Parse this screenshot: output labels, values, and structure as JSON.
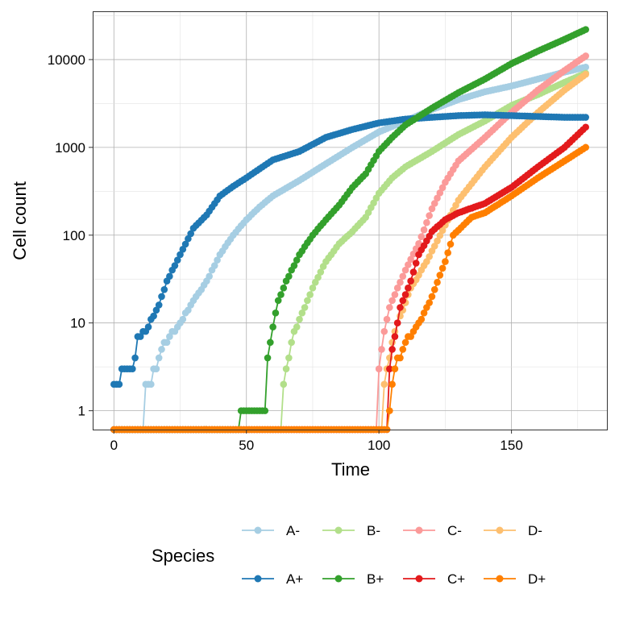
{
  "chart_data": {
    "type": "line",
    "xlabel": "Time",
    "ylabel": "Cell count",
    "xlim": [
      -8,
      186
    ],
    "ylim": [
      0.61,
      35500
    ],
    "yscale": "log10",
    "grid": true,
    "xticks": [
      0,
      50,
      100,
      150
    ],
    "xtick_labels": [
      "0",
      "50",
      "100",
      "150"
    ],
    "yticks": [
      1,
      10,
      100,
      1000,
      10000
    ],
    "ytick_labels": [
      "1",
      "10",
      "100",
      "1000",
      "10000"
    ],
    "legend": {
      "title": "Species",
      "placement": "bottom"
    },
    "series": [
      {
        "name": "A-",
        "color": "#a6cee3",
        "points": [
          [
            0,
            0
          ],
          [
            11,
            0
          ],
          [
            12,
            2
          ],
          [
            16,
            3
          ],
          [
            18,
            5
          ],
          [
            21,
            7
          ],
          [
            25,
            10
          ],
          [
            30,
            18
          ],
          [
            35,
            30
          ],
          [
            40,
            60
          ],
          [
            45,
            100
          ],
          [
            50,
            150
          ],
          [
            55,
            210
          ],
          [
            60,
            280
          ],
          [
            70,
            420
          ],
          [
            80,
            650
          ],
          [
            90,
            1000
          ],
          [
            100,
            1500
          ],
          [
            110,
            2000
          ],
          [
            120,
            2700
          ],
          [
            130,
            3500
          ],
          [
            140,
            4300
          ],
          [
            150,
            5000
          ],
          [
            160,
            6000
          ],
          [
            170,
            7200
          ],
          [
            178,
            8200
          ]
        ]
      },
      {
        "name": "B-",
        "color": "#b2df8a",
        "points": [
          [
            0,
            0
          ],
          [
            63,
            0
          ],
          [
            64,
            2
          ],
          [
            66,
            4
          ],
          [
            68,
            8
          ],
          [
            72,
            15
          ],
          [
            75,
            25
          ],
          [
            80,
            50
          ],
          [
            85,
            80
          ],
          [
            90,
            110
          ],
          [
            95,
            160
          ],
          [
            100,
            300
          ],
          [
            105,
            450
          ],
          [
            110,
            600
          ],
          [
            120,
            900
          ],
          [
            130,
            1400
          ],
          [
            140,
            2000
          ],
          [
            150,
            3000
          ],
          [
            160,
            4000
          ],
          [
            170,
            5500
          ],
          [
            178,
            7000
          ]
        ]
      },
      {
        "name": "C-",
        "color": "#fb9a99",
        "points": [
          [
            0,
            0
          ],
          [
            99,
            0
          ],
          [
            100,
            3
          ],
          [
            102,
            8
          ],
          [
            104,
            15
          ],
          [
            107,
            25
          ],
          [
            110,
            40
          ],
          [
            115,
            80
          ],
          [
            120,
            200
          ],
          [
            125,
            400
          ],
          [
            130,
            700
          ],
          [
            140,
            1300
          ],
          [
            150,
            2500
          ],
          [
            160,
            4500
          ],
          [
            170,
            7500
          ],
          [
            178,
            11000
          ]
        ]
      },
      {
        "name": "D-",
        "color": "#fdbf6f",
        "points": [
          [
            0,
            0
          ],
          [
            101,
            0
          ],
          [
            102,
            2
          ],
          [
            105,
            6
          ],
          [
            108,
            12
          ],
          [
            112,
            25
          ],
          [
            118,
            50
          ],
          [
            125,
            130
          ],
          [
            130,
            250
          ],
          [
            140,
            600
          ],
          [
            150,
            1300
          ],
          [
            160,
            2500
          ],
          [
            170,
            4500
          ],
          [
            178,
            6800
          ]
        ]
      },
      {
        "name": "A+",
        "color": "#1f78b4",
        "points": [
          [
            0,
            2
          ],
          [
            2,
            2
          ],
          [
            3,
            3
          ],
          [
            7,
            3
          ],
          [
            8,
            4
          ],
          [
            9,
            7
          ],
          [
            12,
            8
          ],
          [
            14,
            11
          ],
          [
            17,
            16
          ],
          [
            20,
            30
          ],
          [
            25,
            60
          ],
          [
            30,
            120
          ],
          [
            35,
            170
          ],
          [
            40,
            280
          ],
          [
            45,
            360
          ],
          [
            50,
            450
          ],
          [
            55,
            570
          ],
          [
            60,
            720
          ],
          [
            70,
            900
          ],
          [
            80,
            1300
          ],
          [
            90,
            1600
          ],
          [
            100,
            1900
          ],
          [
            110,
            2100
          ],
          [
            120,
            2200
          ],
          [
            130,
            2300
          ],
          [
            140,
            2350
          ],
          [
            150,
            2300
          ],
          [
            160,
            2250
          ],
          [
            170,
            2200
          ],
          [
            178,
            2200
          ]
        ]
      },
      {
        "name": "B+",
        "color": "#33a02c",
        "points": [
          [
            0,
            0
          ],
          [
            47,
            0
          ],
          [
            48,
            1
          ],
          [
            57,
            1
          ],
          [
            58,
            4
          ],
          [
            60,
            9
          ],
          [
            62,
            18
          ],
          [
            65,
            30
          ],
          [
            70,
            60
          ],
          [
            75,
            100
          ],
          [
            80,
            150
          ],
          [
            85,
            220
          ],
          [
            90,
            350
          ],
          [
            95,
            500
          ],
          [
            100,
            900
          ],
          [
            105,
            1300
          ],
          [
            110,
            1800
          ],
          [
            120,
            2800
          ],
          [
            130,
            4200
          ],
          [
            140,
            6000
          ],
          [
            150,
            9000
          ],
          [
            160,
            12500
          ],
          [
            170,
            17000
          ],
          [
            178,
            22000
          ]
        ]
      },
      {
        "name": "C+",
        "color": "#e31a1c",
        "points": [
          [
            0,
            0
          ],
          [
            103,
            0
          ],
          [
            104,
            3
          ],
          [
            106,
            7
          ],
          [
            108,
            15
          ],
          [
            112,
            30
          ],
          [
            115,
            60
          ],
          [
            120,
            110
          ],
          [
            125,
            150
          ],
          [
            130,
            180
          ],
          [
            140,
            230
          ],
          [
            150,
            350
          ],
          [
            160,
            600
          ],
          [
            170,
            1000
          ],
          [
            178,
            1700
          ]
        ]
      },
      {
        "name": "D+",
        "color": "#ff7f00",
        "points": [
          [
            0,
            0
          ],
          [
            103,
            0
          ],
          [
            104,
            1
          ],
          [
            106,
            3
          ],
          [
            110,
            6
          ],
          [
            115,
            10
          ],
          [
            120,
            20
          ],
          [
            125,
            50
          ],
          [
            128,
            100
          ],
          [
            135,
            160
          ],
          [
            140,
            180
          ],
          [
            150,
            280
          ],
          [
            160,
            450
          ],
          [
            170,
            700
          ],
          [
            178,
            1000
          ]
        ]
      }
    ]
  }
}
